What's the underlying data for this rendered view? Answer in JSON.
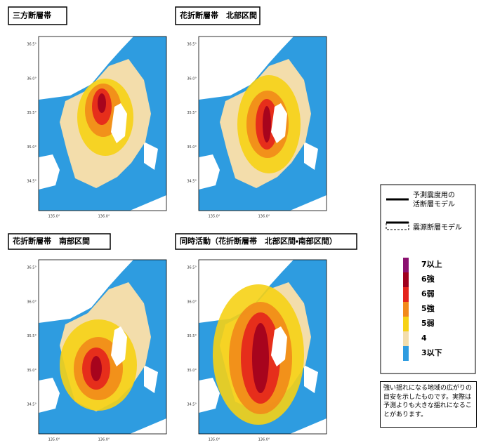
{
  "panels": [
    {
      "title": "三方断層帯",
      "yticks": [
        "36.5°",
        "36.0°",
        "35.5°",
        "35.0°",
        "34.5°"
      ],
      "xticks": [
        "135.0°",
        "136.0°"
      ]
    },
    {
      "title": "花折断層帯　北部区間",
      "yticks": [
        "36.5°",
        "36.0°",
        "35.5°",
        "35.0°",
        "34.5°"
      ],
      "xticks": [
        "135.0°",
        "136.0°"
      ]
    },
    {
      "title": "花折断層帯　南部区間",
      "yticks": [
        "36.5°",
        "36.0°",
        "35.5°",
        "35.0°",
        "34.5°"
      ],
      "xticks": [
        "135.0°",
        "136.0°"
      ]
    },
    {
      "title": "同時活動（花折断層帯　北部区間・南部区間）",
      "yticks": [
        "36.5°",
        "36.0°",
        "35.5°",
        "35.0°",
        "34.5°"
      ],
      "xticks": [
        "135.0°",
        "136.0°"
      ]
    }
  ],
  "legend": {
    "fault_lines": [
      {
        "lines": [
          "予測震度用の",
          "活断層モデル"
        ]
      },
      {
        "lines": [
          "震源断層モデル"
        ]
      }
    ],
    "scale": [
      {
        "label": "7以上",
        "color": "#8b1170"
      },
      {
        "label": "6強",
        "color": "#a0001e"
      },
      {
        "label": "6弱",
        "color": "#e4241c"
      },
      {
        "label": "5強",
        "color": "#f28a1a"
      },
      {
        "label": "5弱",
        "color": "#f6d215"
      },
      {
        "label": "4",
        "color": "#f3ddab"
      },
      {
        "label": "3以下",
        "color": "#2e9ce0"
      }
    ]
  },
  "note": "強い揺れになる地域の広がりの目安を示したものです。実際は予測よりも大きな揺れになることがあります。"
}
